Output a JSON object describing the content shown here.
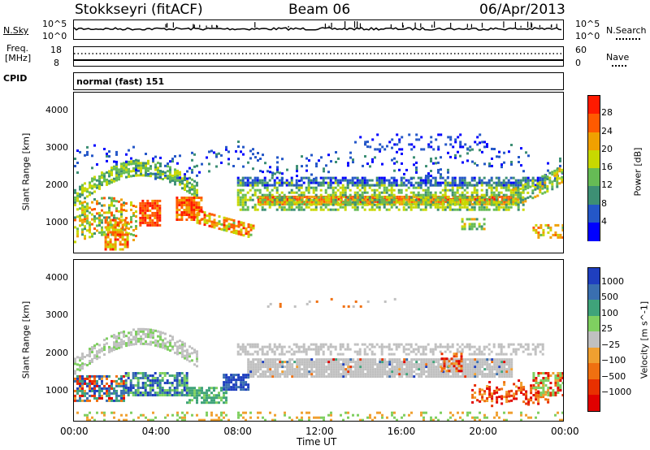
{
  "header": {
    "radar": "Stokkseyri (fitACF)",
    "beam": "Beam 06",
    "date": "06/Apr/2013"
  },
  "noise_panel": {
    "left_label": "N.Sky",
    "right_label": "N.Search",
    "tick_top": "10^5",
    "tick_bottom": "10^0"
  },
  "freq_panel": {
    "left_label_1": "Freq.",
    "left_label_2": "[MHz]",
    "tick_top_left": "18",
    "tick_bottom_left": "8",
    "tick_top_right": "60",
    "tick_bottom_right": "0",
    "right_label": "Nave"
  },
  "cpid_panel": {
    "label": "CPID",
    "mode": "normal (fast) 151"
  },
  "chart_data": [
    {
      "type": "heatmap",
      "name": "power",
      "ylabel": "Slant Range [km]",
      "ylim": [
        180,
        4500
      ],
      "yticks": [
        "1000",
        "2000",
        "3000",
        "4000"
      ],
      "colorbar_label": "Power [dB]",
      "colorbar_ticks": [
        "4",
        "8",
        "12",
        "16",
        "20",
        "24",
        "28"
      ],
      "colors": [
        "#0000ff",
        "#2457c8",
        "#3d8f74",
        "#66bb55",
        "#c8d800",
        "#f0a000",
        "#ff5a00",
        "#ff1a00"
      ]
    },
    {
      "type": "heatmap",
      "name": "velocity",
      "ylabel": "Slant Range [km]",
      "ylim": [
        180,
        4500
      ],
      "yticks": [
        "1000",
        "2000",
        "3000",
        "4000"
      ],
      "colorbar_label": "Velocity [m s^-1]",
      "colorbar_ticks": [
        "1000",
        "500",
        "100",
        "25",
        "−25",
        "−100",
        "−500",
        "−1000"
      ],
      "colors": [
        "#1f3fbf",
        "#3a6fb0",
        "#3fa37a",
        "#7fcf60",
        "#c0c0c0",
        "#f0a030",
        "#f07010",
        "#e83000",
        "#e00000"
      ]
    }
  ],
  "xaxis": {
    "label": "Time UT",
    "ticks": [
      "00:00",
      "04:00",
      "08:00",
      "12:00",
      "16:00",
      "20:00",
      "00:00"
    ]
  },
  "colorbar_velocity_superscript": "−1"
}
